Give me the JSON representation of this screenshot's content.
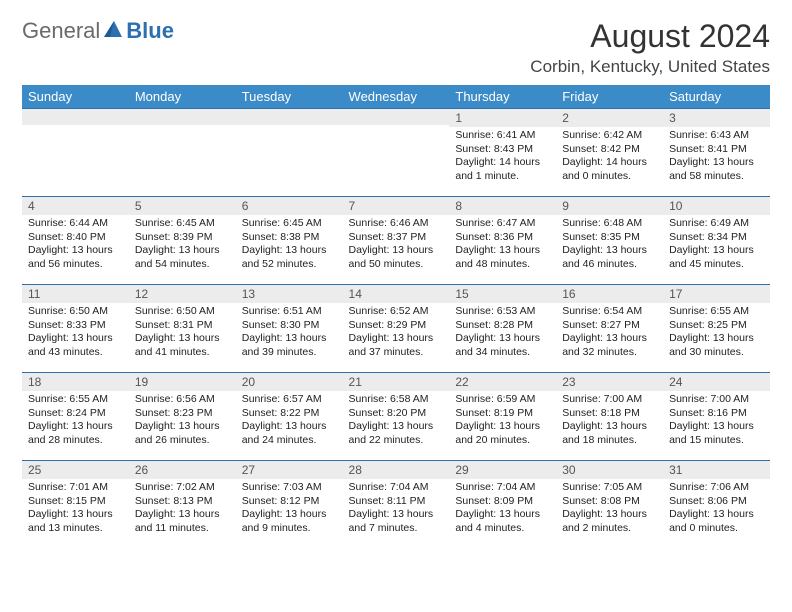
{
  "logo": {
    "general": "General",
    "blue": "Blue"
  },
  "title": "August 2024",
  "location": "Corbin, Kentucky, United States",
  "colors": {
    "header_bg": "#3b8bc8",
    "header_text": "#ffffff",
    "border": "#2e6fb0",
    "daynum_bg": "#ececec",
    "logo_general": "#6a6a6a",
    "logo_blue": "#2e6fb0"
  },
  "weekdays": [
    "Sunday",
    "Monday",
    "Tuesday",
    "Wednesday",
    "Thursday",
    "Friday",
    "Saturday"
  ],
  "weeks": [
    [
      {
        "n": "",
        "sr": "",
        "ss": "",
        "dl": ""
      },
      {
        "n": "",
        "sr": "",
        "ss": "",
        "dl": ""
      },
      {
        "n": "",
        "sr": "",
        "ss": "",
        "dl": ""
      },
      {
        "n": "",
        "sr": "",
        "ss": "",
        "dl": ""
      },
      {
        "n": "1",
        "sr": "Sunrise: 6:41 AM",
        "ss": "Sunset: 8:43 PM",
        "dl": "Daylight: 14 hours and 1 minute."
      },
      {
        "n": "2",
        "sr": "Sunrise: 6:42 AM",
        "ss": "Sunset: 8:42 PM",
        "dl": "Daylight: 14 hours and 0 minutes."
      },
      {
        "n": "3",
        "sr": "Sunrise: 6:43 AM",
        "ss": "Sunset: 8:41 PM",
        "dl": "Daylight: 13 hours and 58 minutes."
      }
    ],
    [
      {
        "n": "4",
        "sr": "Sunrise: 6:44 AM",
        "ss": "Sunset: 8:40 PM",
        "dl": "Daylight: 13 hours and 56 minutes."
      },
      {
        "n": "5",
        "sr": "Sunrise: 6:45 AM",
        "ss": "Sunset: 8:39 PM",
        "dl": "Daylight: 13 hours and 54 minutes."
      },
      {
        "n": "6",
        "sr": "Sunrise: 6:45 AM",
        "ss": "Sunset: 8:38 PM",
        "dl": "Daylight: 13 hours and 52 minutes."
      },
      {
        "n": "7",
        "sr": "Sunrise: 6:46 AM",
        "ss": "Sunset: 8:37 PM",
        "dl": "Daylight: 13 hours and 50 minutes."
      },
      {
        "n": "8",
        "sr": "Sunrise: 6:47 AM",
        "ss": "Sunset: 8:36 PM",
        "dl": "Daylight: 13 hours and 48 minutes."
      },
      {
        "n": "9",
        "sr": "Sunrise: 6:48 AM",
        "ss": "Sunset: 8:35 PM",
        "dl": "Daylight: 13 hours and 46 minutes."
      },
      {
        "n": "10",
        "sr": "Sunrise: 6:49 AM",
        "ss": "Sunset: 8:34 PM",
        "dl": "Daylight: 13 hours and 45 minutes."
      }
    ],
    [
      {
        "n": "11",
        "sr": "Sunrise: 6:50 AM",
        "ss": "Sunset: 8:33 PM",
        "dl": "Daylight: 13 hours and 43 minutes."
      },
      {
        "n": "12",
        "sr": "Sunrise: 6:50 AM",
        "ss": "Sunset: 8:31 PM",
        "dl": "Daylight: 13 hours and 41 minutes."
      },
      {
        "n": "13",
        "sr": "Sunrise: 6:51 AM",
        "ss": "Sunset: 8:30 PM",
        "dl": "Daylight: 13 hours and 39 minutes."
      },
      {
        "n": "14",
        "sr": "Sunrise: 6:52 AM",
        "ss": "Sunset: 8:29 PM",
        "dl": "Daylight: 13 hours and 37 minutes."
      },
      {
        "n": "15",
        "sr": "Sunrise: 6:53 AM",
        "ss": "Sunset: 8:28 PM",
        "dl": "Daylight: 13 hours and 34 minutes."
      },
      {
        "n": "16",
        "sr": "Sunrise: 6:54 AM",
        "ss": "Sunset: 8:27 PM",
        "dl": "Daylight: 13 hours and 32 minutes."
      },
      {
        "n": "17",
        "sr": "Sunrise: 6:55 AM",
        "ss": "Sunset: 8:25 PM",
        "dl": "Daylight: 13 hours and 30 minutes."
      }
    ],
    [
      {
        "n": "18",
        "sr": "Sunrise: 6:55 AM",
        "ss": "Sunset: 8:24 PM",
        "dl": "Daylight: 13 hours and 28 minutes."
      },
      {
        "n": "19",
        "sr": "Sunrise: 6:56 AM",
        "ss": "Sunset: 8:23 PM",
        "dl": "Daylight: 13 hours and 26 minutes."
      },
      {
        "n": "20",
        "sr": "Sunrise: 6:57 AM",
        "ss": "Sunset: 8:22 PM",
        "dl": "Daylight: 13 hours and 24 minutes."
      },
      {
        "n": "21",
        "sr": "Sunrise: 6:58 AM",
        "ss": "Sunset: 8:20 PM",
        "dl": "Daylight: 13 hours and 22 minutes."
      },
      {
        "n": "22",
        "sr": "Sunrise: 6:59 AM",
        "ss": "Sunset: 8:19 PM",
        "dl": "Daylight: 13 hours and 20 minutes."
      },
      {
        "n": "23",
        "sr": "Sunrise: 7:00 AM",
        "ss": "Sunset: 8:18 PM",
        "dl": "Daylight: 13 hours and 18 minutes."
      },
      {
        "n": "24",
        "sr": "Sunrise: 7:00 AM",
        "ss": "Sunset: 8:16 PM",
        "dl": "Daylight: 13 hours and 15 minutes."
      }
    ],
    [
      {
        "n": "25",
        "sr": "Sunrise: 7:01 AM",
        "ss": "Sunset: 8:15 PM",
        "dl": "Daylight: 13 hours and 13 minutes."
      },
      {
        "n": "26",
        "sr": "Sunrise: 7:02 AM",
        "ss": "Sunset: 8:13 PM",
        "dl": "Daylight: 13 hours and 11 minutes."
      },
      {
        "n": "27",
        "sr": "Sunrise: 7:03 AM",
        "ss": "Sunset: 8:12 PM",
        "dl": "Daylight: 13 hours and 9 minutes."
      },
      {
        "n": "28",
        "sr": "Sunrise: 7:04 AM",
        "ss": "Sunset: 8:11 PM",
        "dl": "Daylight: 13 hours and 7 minutes."
      },
      {
        "n": "29",
        "sr": "Sunrise: 7:04 AM",
        "ss": "Sunset: 8:09 PM",
        "dl": "Daylight: 13 hours and 4 minutes."
      },
      {
        "n": "30",
        "sr": "Sunrise: 7:05 AM",
        "ss": "Sunset: 8:08 PM",
        "dl": "Daylight: 13 hours and 2 minutes."
      },
      {
        "n": "31",
        "sr": "Sunrise: 7:06 AM",
        "ss": "Sunset: 8:06 PM",
        "dl": "Daylight: 13 hours and 0 minutes."
      }
    ]
  ]
}
